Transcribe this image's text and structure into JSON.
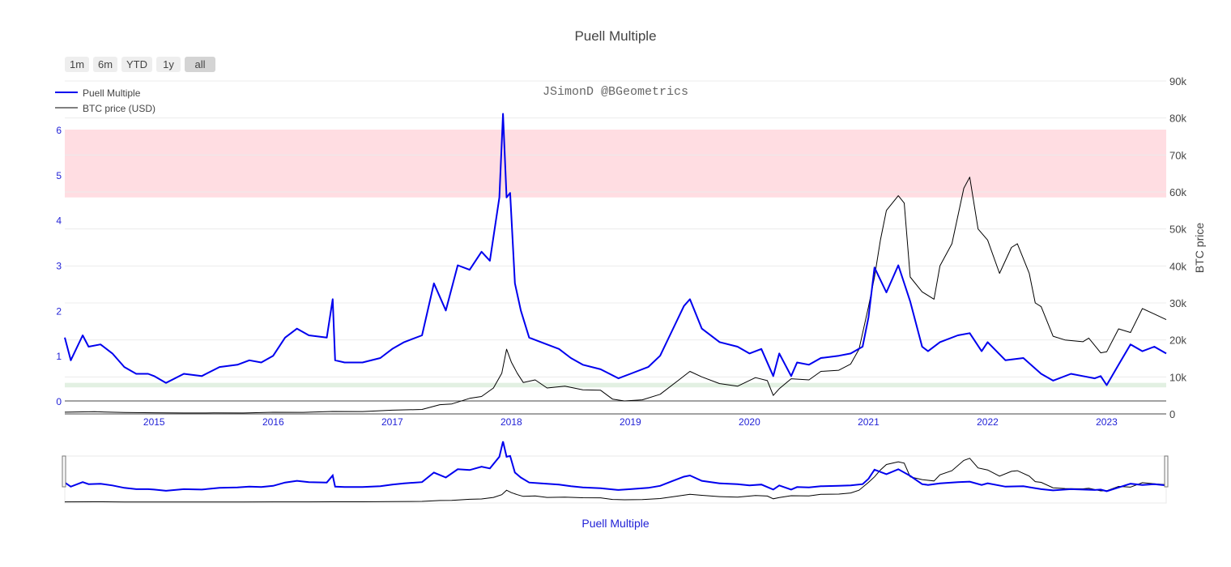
{
  "title": "Puell Multiple",
  "watermark": "JSimonD @BGeometrics",
  "range_buttons": [
    {
      "label": "1m",
      "active": false
    },
    {
      "label": "6m",
      "active": false
    },
    {
      "label": "YTD",
      "active": false
    },
    {
      "label": "1y",
      "active": false
    },
    {
      "label": "all",
      "active": true
    }
  ],
  "legend": [
    "Puell Multiple",
    "BTC price (USD)"
  ],
  "y_left_ticks": [
    "0",
    "1",
    "2",
    "3",
    "4",
    "5",
    "6"
  ],
  "y_right_ticks": [
    "0",
    "10k",
    "20k",
    "30k",
    "40k",
    "50k",
    "60k",
    "70k",
    "80k",
    "90k"
  ],
  "y_right_title": "BTC price",
  "x_ticks": [
    "2015",
    "2016",
    "2017",
    "2018",
    "2019",
    "2020",
    "2021",
    "2022",
    "2023"
  ],
  "rangeslider_label": "Puell Multiple",
  "colors": {
    "puell": "#0000ee",
    "btc": "#000000",
    "red_band": "#ffdde2",
    "green_band": "#e2f0e2",
    "axis_text_blue": "#1f1fd6"
  },
  "chart_data": {
    "type": "line",
    "x_range": [
      2014.25,
      2023.5
    ],
    "y_left_range": [
      0,
      6
    ],
    "y_right_range": [
      0,
      90000
    ],
    "shaded_bands": [
      {
        "axis": "left",
        "from": 4.5,
        "to": 6.0,
        "color": "red"
      },
      {
        "axis": "left",
        "from": 0.3,
        "to": 0.4,
        "color": "green"
      }
    ],
    "series": [
      {
        "name": "Puell Multiple",
        "axis": "left",
        "x": [
          2014.25,
          2014.3,
          2014.4,
          2014.45,
          2014.55,
          2014.65,
          2014.75,
          2014.85,
          2014.95,
          2015.0,
          2015.1,
          2015.25,
          2015.4,
          2015.55,
          2015.7,
          2015.8,
          2015.9,
          2016.0,
          2016.1,
          2016.2,
          2016.3,
          2016.45,
          2016.5,
          2016.52,
          2016.6,
          2016.75,
          2016.9,
          2017.0,
          2017.1,
          2017.25,
          2017.35,
          2017.45,
          2017.55,
          2017.65,
          2017.75,
          2017.82,
          2017.9,
          2017.93,
          2017.96,
          2017.99,
          2018.03,
          2018.08,
          2018.15,
          2018.25,
          2018.4,
          2018.5,
          2018.6,
          2018.75,
          2018.9,
          2019.0,
          2019.15,
          2019.25,
          2019.35,
          2019.45,
          2019.5,
          2019.6,
          2019.75,
          2019.9,
          2020.0,
          2020.1,
          2020.2,
          2020.25,
          2020.35,
          2020.4,
          2020.5,
          2020.6,
          2020.75,
          2020.85,
          2020.95,
          2021.0,
          2021.05,
          2021.15,
          2021.25,
          2021.35,
          2021.45,
          2021.5,
          2021.6,
          2021.75,
          2021.85,
          2021.95,
          2022.0,
          2022.15,
          2022.3,
          2022.45,
          2022.55,
          2022.7,
          2022.8,
          2022.9,
          2022.95,
          2023.0,
          2023.1,
          2023.2,
          2023.3,
          2023.4,
          2023.5
        ],
        "y": [
          1.4,
          0.9,
          1.45,
          1.2,
          1.25,
          1.05,
          0.75,
          0.6,
          0.6,
          0.55,
          0.4,
          0.6,
          0.55,
          0.75,
          0.8,
          0.9,
          0.85,
          1.0,
          1.4,
          1.6,
          1.45,
          1.4,
          2.25,
          0.9,
          0.85,
          0.85,
          0.95,
          1.15,
          1.3,
          1.45,
          2.6,
          2.0,
          3.0,
          2.9,
          3.3,
          3.1,
          4.5,
          6.35,
          4.5,
          4.6,
          2.6,
          2.0,
          1.4,
          1.3,
          1.15,
          0.95,
          0.8,
          0.7,
          0.5,
          0.6,
          0.75,
          1.0,
          1.55,
          2.1,
          2.25,
          1.6,
          1.3,
          1.2,
          1.05,
          1.15,
          0.55,
          1.05,
          0.55,
          0.85,
          0.8,
          0.95,
          1.0,
          1.05,
          1.2,
          1.85,
          2.95,
          2.4,
          3.0,
          2.2,
          1.2,
          1.1,
          1.3,
          1.45,
          1.5,
          1.1,
          1.3,
          0.9,
          0.95,
          0.6,
          0.45,
          0.6,
          0.55,
          0.5,
          0.55,
          0.35,
          0.8,
          1.25,
          1.1,
          1.2,
          1.05
        ]
      },
      {
        "name": "BTC price (USD)",
        "axis": "right",
        "x": [
          2014.25,
          2014.5,
          2014.75,
          2015.0,
          2015.25,
          2015.5,
          2015.75,
          2016.0,
          2016.25,
          2016.5,
          2016.75,
          2017.0,
          2017.25,
          2017.4,
          2017.5,
          2017.65,
          2017.75,
          2017.85,
          2017.92,
          2017.96,
          2018.0,
          2018.05,
          2018.1,
          2018.2,
          2018.3,
          2018.45,
          2018.6,
          2018.75,
          2018.85,
          2018.95,
          2019.1,
          2019.25,
          2019.4,
          2019.5,
          2019.6,
          2019.75,
          2019.9,
          2020.05,
          2020.15,
          2020.2,
          2020.25,
          2020.35,
          2020.5,
          2020.6,
          2020.75,
          2020.85,
          2020.92,
          2021.0,
          2021.05,
          2021.1,
          2021.15,
          2021.25,
          2021.3,
          2021.35,
          2021.45,
          2021.55,
          2021.6,
          2021.7,
          2021.8,
          2021.85,
          2021.92,
          2022.0,
          2022.1,
          2022.2,
          2022.25,
          2022.35,
          2022.4,
          2022.45,
          2022.55,
          2022.65,
          2022.8,
          2022.85,
          2022.95,
          2023.0,
          2023.1,
          2023.2,
          2023.3,
          2023.4,
          2023.5
        ],
        "y": [
          450,
          600,
          380,
          300,
          240,
          260,
          240,
          430,
          420,
          650,
          640,
          1000,
          1200,
          2500,
          2700,
          4200,
          4700,
          7000,
          11000,
          17500,
          14000,
          11000,
          8500,
          9200,
          7000,
          7500,
          6500,
          6400,
          4000,
          3500,
          3800,
          5300,
          9000,
          11500,
          10000,
          8200,
          7500,
          9800,
          9000,
          5000,
          6800,
          9500,
          9200,
          11500,
          11800,
          13500,
          17500,
          29000,
          37000,
          47000,
          55000,
          59000,
          57000,
          37000,
          33000,
          31000,
          40000,
          46000,
          61000,
          64000,
          50000,
          47000,
          38000,
          45000,
          46000,
          38000,
          30000,
          29000,
          21000,
          20000,
          19500,
          20500,
          16500,
          16800,
          23000,
          22000,
          28500,
          27000,
          25500
        ]
      }
    ]
  }
}
